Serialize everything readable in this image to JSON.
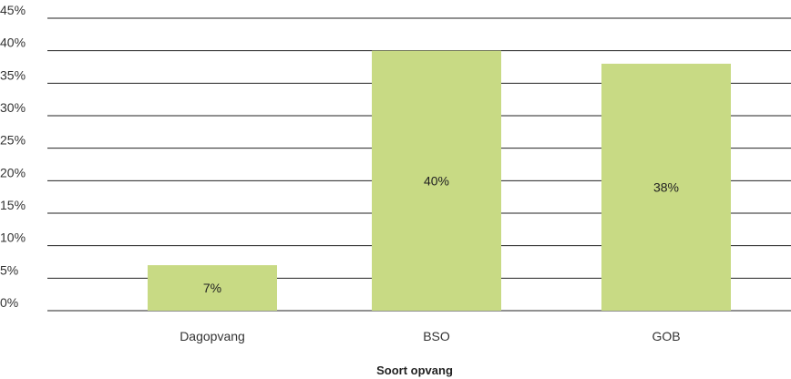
{
  "chart_data": {
    "type": "bar",
    "categories": [
      "Dagopvang",
      "BSO",
      "GOB"
    ],
    "values": [
      7,
      40,
      38
    ],
    "data_labels": [
      "7%",
      "40%",
      "38%"
    ],
    "xlabel": "Soort opvang",
    "ylabel": "",
    "ylim": [
      0,
      45
    ],
    "yticks": [
      0,
      5,
      10,
      15,
      20,
      25,
      30,
      35,
      40,
      45
    ],
    "ytick_labels": [
      "0%",
      "5%",
      "10%",
      "15%",
      "20%",
      "25%",
      "30%",
      "35%",
      "40%",
      "45%"
    ],
    "grid": true,
    "bar_color": "#c8da84",
    "grid_color": "#222222"
  }
}
